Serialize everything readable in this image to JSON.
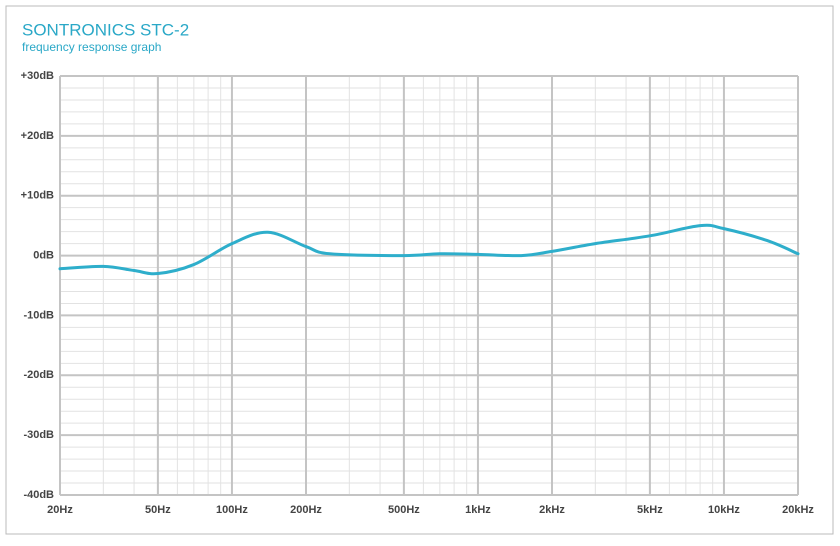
{
  "chart_data": {
    "type": "line",
    "title": "SONTRONICS STC-2",
    "subtitle": "frequency response graph",
    "x": [
      20,
      30,
      40,
      50,
      70,
      100,
      140,
      200,
      250,
      500,
      700,
      1000,
      1500,
      2000,
      3000,
      5000,
      8000,
      10000,
      15000,
      20000
    ],
    "series": [
      {
        "name": "STC-2",
        "color": "#2eaecb",
        "values": [
          -2.2,
          -1.8,
          -2.5,
          -3,
          -1.5,
          2,
          3.9,
          1.5,
          0.3,
          0,
          0.3,
          0.2,
          0,
          0.7,
          2,
          3.3,
          5,
          4.5,
          2.5,
          0.3
        ]
      }
    ],
    "xlim": [
      20,
      20000
    ],
    "ylim": [
      -40,
      30
    ],
    "log_x": true,
    "grid": true,
    "xticks": [
      {
        "value": 20,
        "label": "20Hz"
      },
      {
        "value": 50,
        "label": "50Hz"
      },
      {
        "value": 100,
        "label": "100Hz"
      },
      {
        "value": 200,
        "label": "200Hz"
      },
      {
        "value": 500,
        "label": "500Hz"
      },
      {
        "value": 1000,
        "label": "1kHz"
      },
      {
        "value": 2000,
        "label": "2kHz"
      },
      {
        "value": 5000,
        "label": "5kHz"
      },
      {
        "value": 10000,
        "label": "10kHz"
      },
      {
        "value": 20000,
        "label": "20kHz"
      }
    ],
    "x_minor_ticks": [
      30,
      40,
      60,
      70,
      80,
      90,
      300,
      400,
      600,
      700,
      800,
      900,
      3000,
      4000,
      6000,
      7000,
      8000,
      9000
    ],
    "yticks": [
      {
        "value": 30,
        "label": "+30dB"
      },
      {
        "value": 20,
        "label": "+20dB"
      },
      {
        "value": 10,
        "label": "+10dB"
      },
      {
        "value": 0,
        "label": "0dB"
      },
      {
        "value": -10,
        "label": "-10dB"
      },
      {
        "value": -20,
        "label": "-20dB"
      },
      {
        "value": -30,
        "label": "-30dB"
      },
      {
        "value": -40,
        "label": "-40dB"
      }
    ],
    "y_minor_ticks": [
      28,
      26,
      24,
      22,
      18,
      16,
      14,
      12,
      8,
      6,
      4,
      2,
      -2,
      -4,
      -6,
      -8,
      -12,
      -14,
      -16,
      -18,
      -22,
      -24,
      -26,
      -28,
      -32,
      -34,
      -36,
      -38
    ]
  }
}
